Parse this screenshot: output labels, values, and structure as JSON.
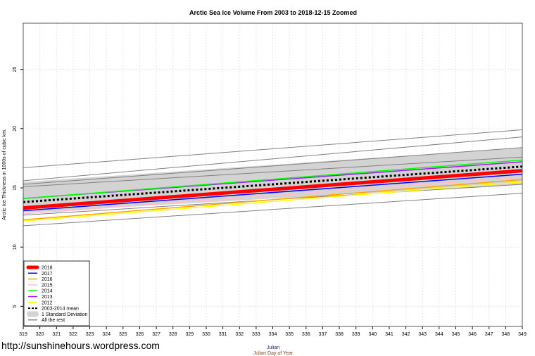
{
  "chart_data": {
    "type": "line",
    "title": "Arctic Sea Ice Volume From 2003 to 2018-12-15 Zoomed",
    "xlabel": "Julian",
    "xlabel2": "Julian Day of Year",
    "ylabel": "Arctic Ice Thickness in 1000s of cubic km.",
    "xlim": [
      319,
      349
    ],
    "ylim": [
      3.3,
      28.9
    ],
    "xticks": [
      319,
      320,
      321,
      322,
      323,
      324,
      325,
      326,
      327,
      328,
      329,
      330,
      331,
      332,
      333,
      334,
      335,
      336,
      337,
      338,
      339,
      340,
      341,
      342,
      343,
      344,
      345,
      346,
      347,
      348,
      349
    ],
    "yticks": [
      5,
      10,
      15,
      20,
      25
    ],
    "grid": true,
    "legend_position": "bottom-left",
    "x": [
      319,
      349
    ],
    "band": {
      "name": "1 Standard Deviation",
      "color": "#d3d3d3",
      "lower": [
        12.9,
        15.3
      ],
      "upper": [
        15.5,
        18.4
      ]
    },
    "others": {
      "name": "All the rest",
      "color": "#808080",
      "lines": [
        [
          16.7,
          19.9
        ],
        [
          15.6,
          19.3
        ],
        [
          15.3,
          18.4
        ],
        [
          15.1,
          17.6
        ],
        [
          12.7,
          15.3
        ],
        [
          11.8,
          14.55
        ]
      ]
    },
    "series": [
      {
        "name": "2018",
        "color": "#ff0000",
        "values": [
          13.3,
          16.45
        ]
      },
      {
        "name": "2017",
        "color": "#0000ff",
        "values": [
          13.07,
          16.15
        ]
      },
      {
        "name": "2016",
        "color": "#ffa500",
        "values": [
          12.3,
          15.7
        ]
      },
      {
        "name": "2015",
        "color": "#ffc0cb",
        "values": [
          12.8,
          15.9
        ]
      },
      {
        "name": "2014",
        "color": "#00ff00",
        "values": [
          14.1,
          17.35
        ]
      },
      {
        "name": "2013",
        "color": "#a020f0",
        "values": [
          14.1,
          17.2
        ]
      },
      {
        "name": "2012",
        "color": "#ffff00",
        "values": [
          12.2,
          15.5
        ]
      },
      {
        "name": "2003-2014 mean",
        "color": "#000000",
        "values": [
          13.8,
          16.8
        ]
      }
    ]
  },
  "watermark": "http://sunshinehours.wordpress.com"
}
